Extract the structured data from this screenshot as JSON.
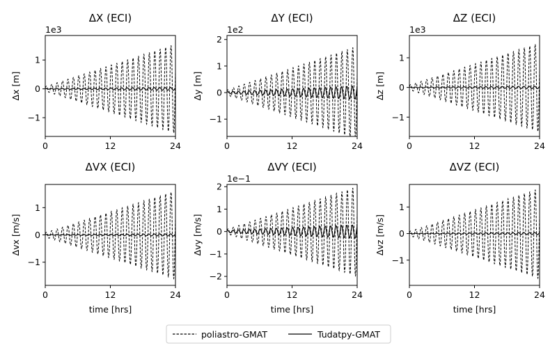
{
  "chart_data": [
    {
      "type": "line",
      "title": "ΔX (ECI)",
      "xlabel": "",
      "ylabel": "Δx [m]",
      "multiplier": "1e3",
      "xlim": [
        0,
        24
      ],
      "ylim": [
        -1.65,
        1.85
      ],
      "xticks": [
        0,
        12,
        24
      ],
      "yticks": [
        -1,
        0,
        1
      ],
      "envelope": {
        "start": 0.12,
        "end": 1.6
      },
      "series": [
        {
          "name": "poliastro-GMAT",
          "style": "dashed",
          "amp_start": 0.08,
          "amp_end": 1.55,
          "cycles": 24
        },
        {
          "name": "Tudatpy-GMAT",
          "style": "solid",
          "amp_start": 0.01,
          "amp_end": 0.05,
          "cycles": 24,
          "trend_start": 0.0,
          "trend_end": 0.0
        }
      ]
    },
    {
      "type": "line",
      "title": "ΔY (ECI)",
      "xlabel": "",
      "ylabel": "Δy [m]",
      "multiplier": "1e2",
      "xlim": [
        0,
        24
      ],
      "ylim": [
        -1.65,
        2.15
      ],
      "xticks": [
        0,
        12,
        24
      ],
      "yticks": [
        -1,
        0,
        1,
        2
      ],
      "series": [
        {
          "name": "poliastro-GMAT",
          "style": "dashed",
          "amp_start": 0.1,
          "amp_end": 1.75,
          "cycles": 24
        },
        {
          "name": "Tudatpy-GMAT",
          "style": "solid",
          "amp_start": 0.03,
          "amp_end": 0.25,
          "cycles": 24,
          "trend_start": 0.0,
          "trend_end": 0.0
        }
      ]
    },
    {
      "type": "line",
      "title": "ΔZ (ECI)",
      "xlabel": "",
      "ylabel": "Δz [m]",
      "multiplier": "1e3",
      "xlim": [
        0,
        24
      ],
      "ylim": [
        -1.65,
        1.75
      ],
      "xticks": [
        0,
        12,
        24
      ],
      "yticks": [
        -1,
        0,
        1
      ],
      "series": [
        {
          "name": "poliastro-GMAT",
          "style": "dashed",
          "amp_start": 0.08,
          "amp_end": 1.5,
          "cycles": 24
        },
        {
          "name": "Tudatpy-GMAT",
          "style": "solid",
          "amp_start": 0.01,
          "amp_end": 0.04,
          "cycles": 24,
          "trend_start": 0.0,
          "trend_end": 0.0
        }
      ]
    },
    {
      "type": "line",
      "title": "ΔVX (ECI)",
      "xlabel": "time [hrs]",
      "ylabel": "Δvx [m/s]",
      "multiplier": "",
      "xlim": [
        0,
        24
      ],
      "ylim": [
        -1.85,
        1.85
      ],
      "xticks": [
        0,
        12,
        24
      ],
      "yticks": [
        -1,
        0,
        1
      ],
      "series": [
        {
          "name": "poliastro-GMAT",
          "style": "dashed",
          "amp_start": 0.08,
          "amp_end": 1.62,
          "cycles": 24
        },
        {
          "name": "Tudatpy-GMAT",
          "style": "solid",
          "amp_start": 0.01,
          "amp_end": 0.04,
          "cycles": 24,
          "trend_start": 0.0,
          "trend_end": 0.0
        }
      ]
    },
    {
      "type": "line",
      "title": "ΔVY (ECI)",
      "xlabel": "time [hrs]",
      "ylabel": "Δvy [m/s]",
      "multiplier": "1e−1",
      "xlim": [
        0,
        24
      ],
      "ylim": [
        -2.4,
        2.1
      ],
      "xticks": [
        0,
        12,
        24
      ],
      "yticks": [
        -2,
        -1,
        0,
        1,
        2
      ],
      "series": [
        {
          "name": "poliastro-GMAT",
          "style": "dashed",
          "amp_start": 0.1,
          "amp_end": 2.0,
          "cycles": 24
        },
        {
          "name": "Tudatpy-GMAT",
          "style": "solid",
          "amp_start": 0.05,
          "amp_end": 0.3,
          "cycles": 24,
          "trend_start": 0.0,
          "trend_end": 0.0
        }
      ]
    },
    {
      "type": "line",
      "title": "ΔVZ (ECI)",
      "xlabel": "time [hrs]",
      "ylabel": "Δvz [m/s]",
      "multiplier": "",
      "xlim": [
        0,
        24
      ],
      "ylim": [
        -1.95,
        1.85
      ],
      "xticks": [
        0,
        12,
        24
      ],
      "yticks": [
        -1,
        0,
        1
      ],
      "series": [
        {
          "name": "poliastro-GMAT",
          "style": "dashed",
          "amp_start": 0.08,
          "amp_end": 1.7,
          "cycles": 24
        },
        {
          "name": "Tudatpy-GMAT",
          "style": "solid",
          "amp_start": 0.01,
          "amp_end": 0.04,
          "cycles": 24,
          "trend_start": 0.0,
          "trend_end": 0.0
        }
      ]
    }
  ],
  "legend": {
    "placement": "bottom-center",
    "entries": [
      {
        "label": "poliastro-GMAT",
        "style": "dashed"
      },
      {
        "label": "Tudatpy-GMAT",
        "style": "solid"
      }
    ]
  },
  "colors": {
    "line": "#000000",
    "axes": "#000000",
    "background": "#ffffff"
  }
}
